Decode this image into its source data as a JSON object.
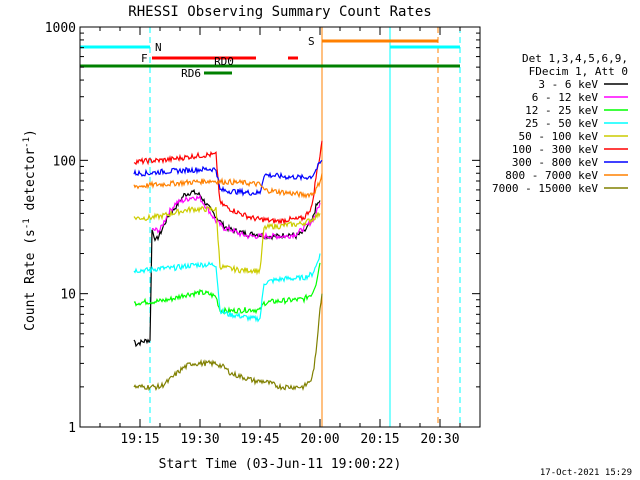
{
  "chart_data": {
    "type": "line",
    "title": "RHESSI Observing Summary Count Rates",
    "xlabel": "Start Time (03-Jun-11 19:00:22)",
    "ylabel": "Count Rate (s",
    "ylabel_sup": "-1",
    "ylabel_tail": " detector",
    "ylabel_sup2": "-1",
    "ylabel_end": ")",
    "y_scale": "log",
    "ylim": [
      1,
      1000
    ],
    "xlim_minutes": [
      0,
      100
    ],
    "x_ticks": [
      {
        "t": 15,
        "label": "19:15"
      },
      {
        "t": 30,
        "label": "19:30"
      },
      {
        "t": 45,
        "label": "19:45"
      },
      {
        "t": 60,
        "label": "20:00"
      },
      {
        "t": 75,
        "label": "20:15"
      },
      {
        "t": 90,
        "label": "20:30"
      }
    ],
    "y_ticks": [
      {
        "v": 1,
        "label": "1"
      },
      {
        "v": 10,
        "label": "10"
      },
      {
        "v": 100,
        "label": "100"
      },
      {
        "v": 1000,
        "label": "1000"
      }
    ],
    "legend_header": [
      "Det 1,3,4,5,6,9,",
      "FDecim 1, Att 0"
    ],
    "footer_date": "17-Oct-2021 15:29",
    "colors": {
      "night": "#00ffff",
      "saa": "#ff8000",
      "flare": "#ff0000",
      "rd0": "#008000",
      "rd6": "#008000"
    },
    "flags": [
      {
        "label": "N",
        "t": [
          0,
          17.5
        ],
        "y": 47,
        "color": "#00ffff"
      },
      {
        "label": "N",
        "t": [
          77.5,
          95
        ],
        "y": 47,
        "color": "#00ffff"
      },
      {
        "label": "S",
        "t": [
          60.5,
          89.5
        ],
        "y": 41,
        "color": "#ff8000"
      },
      {
        "label": "F",
        "t": [
          18,
          44
        ],
        "y": 58,
        "color": "#ff0000"
      },
      {
        "label": "F",
        "t": [
          52,
          54.5
        ],
        "y": 58,
        "color": "#ff0000"
      },
      {
        "label": "RD0",
        "t": [
          0,
          95
        ],
        "y": 66,
        "color": "#008000"
      },
      {
        "label": "RD6",
        "t": [
          31,
          38
        ],
        "y": 73,
        "color": "#008000"
      }
    ],
    "vlines": [
      {
        "t": 0,
        "color": "#00ffff",
        "style": "solid"
      },
      {
        "t": 17.5,
        "color": "#00ffff",
        "style": "dashed"
      },
      {
        "t": 60.5,
        "color": "#ff8000",
        "style": "solid"
      },
      {
        "t": 77.5,
        "color": "#00ffff",
        "style": "solid"
      },
      {
        "t": 89.5,
        "color": "#ff8000",
        "style": "dashed"
      },
      {
        "t": 95,
        "color": "#00ffff",
        "style": "dashed"
      }
    ],
    "series": [
      {
        "name": "3 - 6 keV",
        "color": "#000000",
        "points": [
          [
            13.5,
            4.5
          ],
          [
            14,
            4.2
          ],
          [
            15,
            4.3
          ],
          [
            16,
            4.4
          ],
          [
            17,
            4.5
          ],
          [
            17.5,
            4.4
          ],
          [
            18,
            30
          ],
          [
            19,
            25
          ],
          [
            20,
            28
          ],
          [
            22,
            38
          ],
          [
            24,
            45
          ],
          [
            26,
            55
          ],
          [
            28,
            58
          ],
          [
            30,
            55
          ],
          [
            32,
            45
          ],
          [
            34,
            38
          ],
          [
            36,
            32
          ],
          [
            38,
            30
          ],
          [
            40,
            29
          ],
          [
            42,
            28
          ],
          [
            44,
            28
          ],
          [
            46,
            27
          ],
          [
            48,
            27
          ],
          [
            50,
            27
          ],
          [
            52,
            28
          ],
          [
            54,
            27
          ],
          [
            56,
            29
          ],
          [
            58,
            35
          ],
          [
            59,
            45
          ],
          [
            60,
            50
          ]
        ]
      },
      {
        "name": "6 - 12 keV",
        "color": "#ff00ff",
        "points": [
          [
            18,
            30
          ],
          [
            20,
            30
          ],
          [
            22,
            40
          ],
          [
            24,
            48
          ],
          [
            26,
            50
          ],
          [
            28,
            53
          ],
          [
            30,
            52
          ],
          [
            32,
            43
          ],
          [
            34,
            35
          ],
          [
            36,
            31
          ],
          [
            38,
            30
          ],
          [
            40,
            28
          ],
          [
            42,
            27
          ],
          [
            44,
            27
          ],
          [
            46,
            27
          ],
          [
            48,
            27
          ],
          [
            50,
            27
          ],
          [
            52,
            27
          ],
          [
            54,
            28
          ],
          [
            56,
            31
          ],
          [
            58,
            35
          ],
          [
            59,
            40
          ],
          [
            60,
            48
          ]
        ]
      },
      {
        "name": "12 - 25 keV",
        "color": "#00ff00",
        "points": [
          [
            13.5,
            8.5
          ],
          [
            15,
            8.6
          ],
          [
            17,
            8.7
          ],
          [
            20,
            8.8
          ],
          [
            22,
            9.0
          ],
          [
            24,
            9.3
          ],
          [
            26,
            9.8
          ],
          [
            28,
            10.0
          ],
          [
            30,
            10.2
          ],
          [
            32,
            10.0
          ],
          [
            34,
            9.5
          ],
          [
            35,
            7.5
          ],
          [
            37,
            7.4
          ],
          [
            40,
            7.5
          ],
          [
            43,
            7.6
          ],
          [
            45,
            7.5
          ],
          [
            46,
            8.5
          ],
          [
            48,
            8.7
          ],
          [
            50,
            8.8
          ],
          [
            52,
            8.9
          ],
          [
            54,
            9.0
          ],
          [
            56,
            9.1
          ],
          [
            58,
            10
          ],
          [
            59,
            12
          ],
          [
            60,
            17
          ]
        ]
      },
      {
        "name": "25 - 50 keV",
        "color": "#00ffff",
        "points": [
          [
            13.5,
            15
          ],
          [
            15,
            15
          ],
          [
            17,
            15
          ],
          [
            20,
            15.5
          ],
          [
            23,
            15.5
          ],
          [
            26,
            16
          ],
          [
            29,
            16.5
          ],
          [
            32,
            16.5
          ],
          [
            34,
            16.5
          ],
          [
            35,
            7.5
          ],
          [
            37,
            7
          ],
          [
            40,
            6.8
          ],
          [
            43,
            6.5
          ],
          [
            45,
            6.5
          ],
          [
            46,
            12
          ],
          [
            48,
            12.5
          ],
          [
            50,
            12.8
          ],
          [
            52,
            13
          ],
          [
            54,
            13
          ],
          [
            56,
            13.2
          ],
          [
            58,
            14
          ],
          [
            59,
            16
          ],
          [
            60,
            20
          ]
        ]
      },
      {
        "name": "50 - 100 keV",
        "color": "#cccc00",
        "points": [
          [
            13.5,
            37
          ],
          [
            15,
            37
          ],
          [
            17,
            37
          ],
          [
            20,
            38
          ],
          [
            23,
            40
          ],
          [
            26,
            42
          ],
          [
            28,
            43
          ],
          [
            30,
            43
          ],
          [
            32,
            43
          ],
          [
            34,
            43
          ],
          [
            35,
            16
          ],
          [
            37,
            15.5
          ],
          [
            40,
            15
          ],
          [
            43,
            15
          ],
          [
            45,
            14.8
          ],
          [
            46,
            31
          ],
          [
            48,
            32
          ],
          [
            50,
            32
          ],
          [
            52,
            33
          ],
          [
            54,
            33
          ],
          [
            56,
            34
          ],
          [
            58,
            36
          ],
          [
            59,
            38
          ],
          [
            60,
            40
          ]
        ]
      },
      {
        "name": "100 - 300 keV",
        "color": "#ff0000",
        "points": [
          [
            13.5,
            98
          ],
          [
            15,
            98
          ],
          [
            17,
            99
          ],
          [
            20,
            100
          ],
          [
            23,
            102
          ],
          [
            26,
            105
          ],
          [
            29,
            108
          ],
          [
            32,
            110
          ],
          [
            34,
            110
          ],
          [
            35,
            48
          ],
          [
            37,
            44
          ],
          [
            40,
            40
          ],
          [
            43,
            37
          ],
          [
            45,
            36
          ],
          [
            46,
            36
          ],
          [
            48,
            35
          ],
          [
            50,
            35
          ],
          [
            52,
            36
          ],
          [
            54,
            36
          ],
          [
            56,
            37
          ],
          [
            58,
            45
          ],
          [
            59,
            75
          ],
          [
            60,
            110
          ],
          [
            60.5,
            140
          ]
        ]
      },
      {
        "name": "300 - 800 keV",
        "color": "#0000ff",
        "points": [
          [
            13.5,
            80
          ],
          [
            15,
            80
          ],
          [
            17,
            80
          ],
          [
            20,
            82
          ],
          [
            23,
            83
          ],
          [
            26,
            84
          ],
          [
            29,
            85
          ],
          [
            32,
            86
          ],
          [
            34,
            86
          ],
          [
            35,
            60
          ],
          [
            37,
            59
          ],
          [
            40,
            58
          ],
          [
            43,
            57
          ],
          [
            45,
            57
          ],
          [
            46,
            78
          ],
          [
            48,
            77
          ],
          [
            50,
            76
          ],
          [
            52,
            75
          ],
          [
            54,
            75
          ],
          [
            56,
            74
          ],
          [
            58,
            76
          ],
          [
            59,
            85
          ],
          [
            60,
            95
          ],
          [
            60.5,
            100
          ]
        ]
      },
      {
        "name": "800 - 7000 keV",
        "color": "#ff8000",
        "points": [
          [
            13.5,
            64
          ],
          [
            15,
            64
          ],
          [
            17,
            65
          ],
          [
            20,
            66
          ],
          [
            23,
            67
          ],
          [
            26,
            68
          ],
          [
            29,
            69
          ],
          [
            32,
            70
          ],
          [
            34,
            70
          ],
          [
            35,
            69
          ],
          [
            37,
            69
          ],
          [
            40,
            68
          ],
          [
            43,
            67
          ],
          [
            45,
            66
          ],
          [
            46,
            60
          ],
          [
            48,
            59
          ],
          [
            50,
            58
          ],
          [
            52,
            57
          ],
          [
            54,
            56
          ],
          [
            56,
            55
          ],
          [
            58,
            56
          ],
          [
            59,
            60
          ],
          [
            60,
            70
          ],
          [
            60.5,
            80
          ]
        ]
      },
      {
        "name": "7000 - 15000 keV",
        "color": "#808000",
        "points": [
          [
            13.5,
            2.0
          ],
          [
            15,
            2.0
          ],
          [
            17,
            2.0
          ],
          [
            20,
            2.0
          ],
          [
            22,
            2.2
          ],
          [
            24,
            2.5
          ],
          [
            26,
            2.8
          ],
          [
            28,
            3.0
          ],
          [
            30,
            3.0
          ],
          [
            32,
            3.0
          ],
          [
            34,
            3.0
          ],
          [
            36,
            2.8
          ],
          [
            38,
            2.5
          ],
          [
            40,
            2.4
          ],
          [
            42,
            2.3
          ],
          [
            44,
            2.2
          ],
          [
            46,
            2.2
          ],
          [
            48,
            2.1
          ],
          [
            50,
            2.0
          ],
          [
            52,
            2.0
          ],
          [
            54,
            2.0
          ],
          [
            56,
            2.0
          ],
          [
            58,
            2.3
          ],
          [
            59,
            3.5
          ],
          [
            60,
            8
          ],
          [
            60.5,
            10
          ]
        ]
      }
    ]
  }
}
